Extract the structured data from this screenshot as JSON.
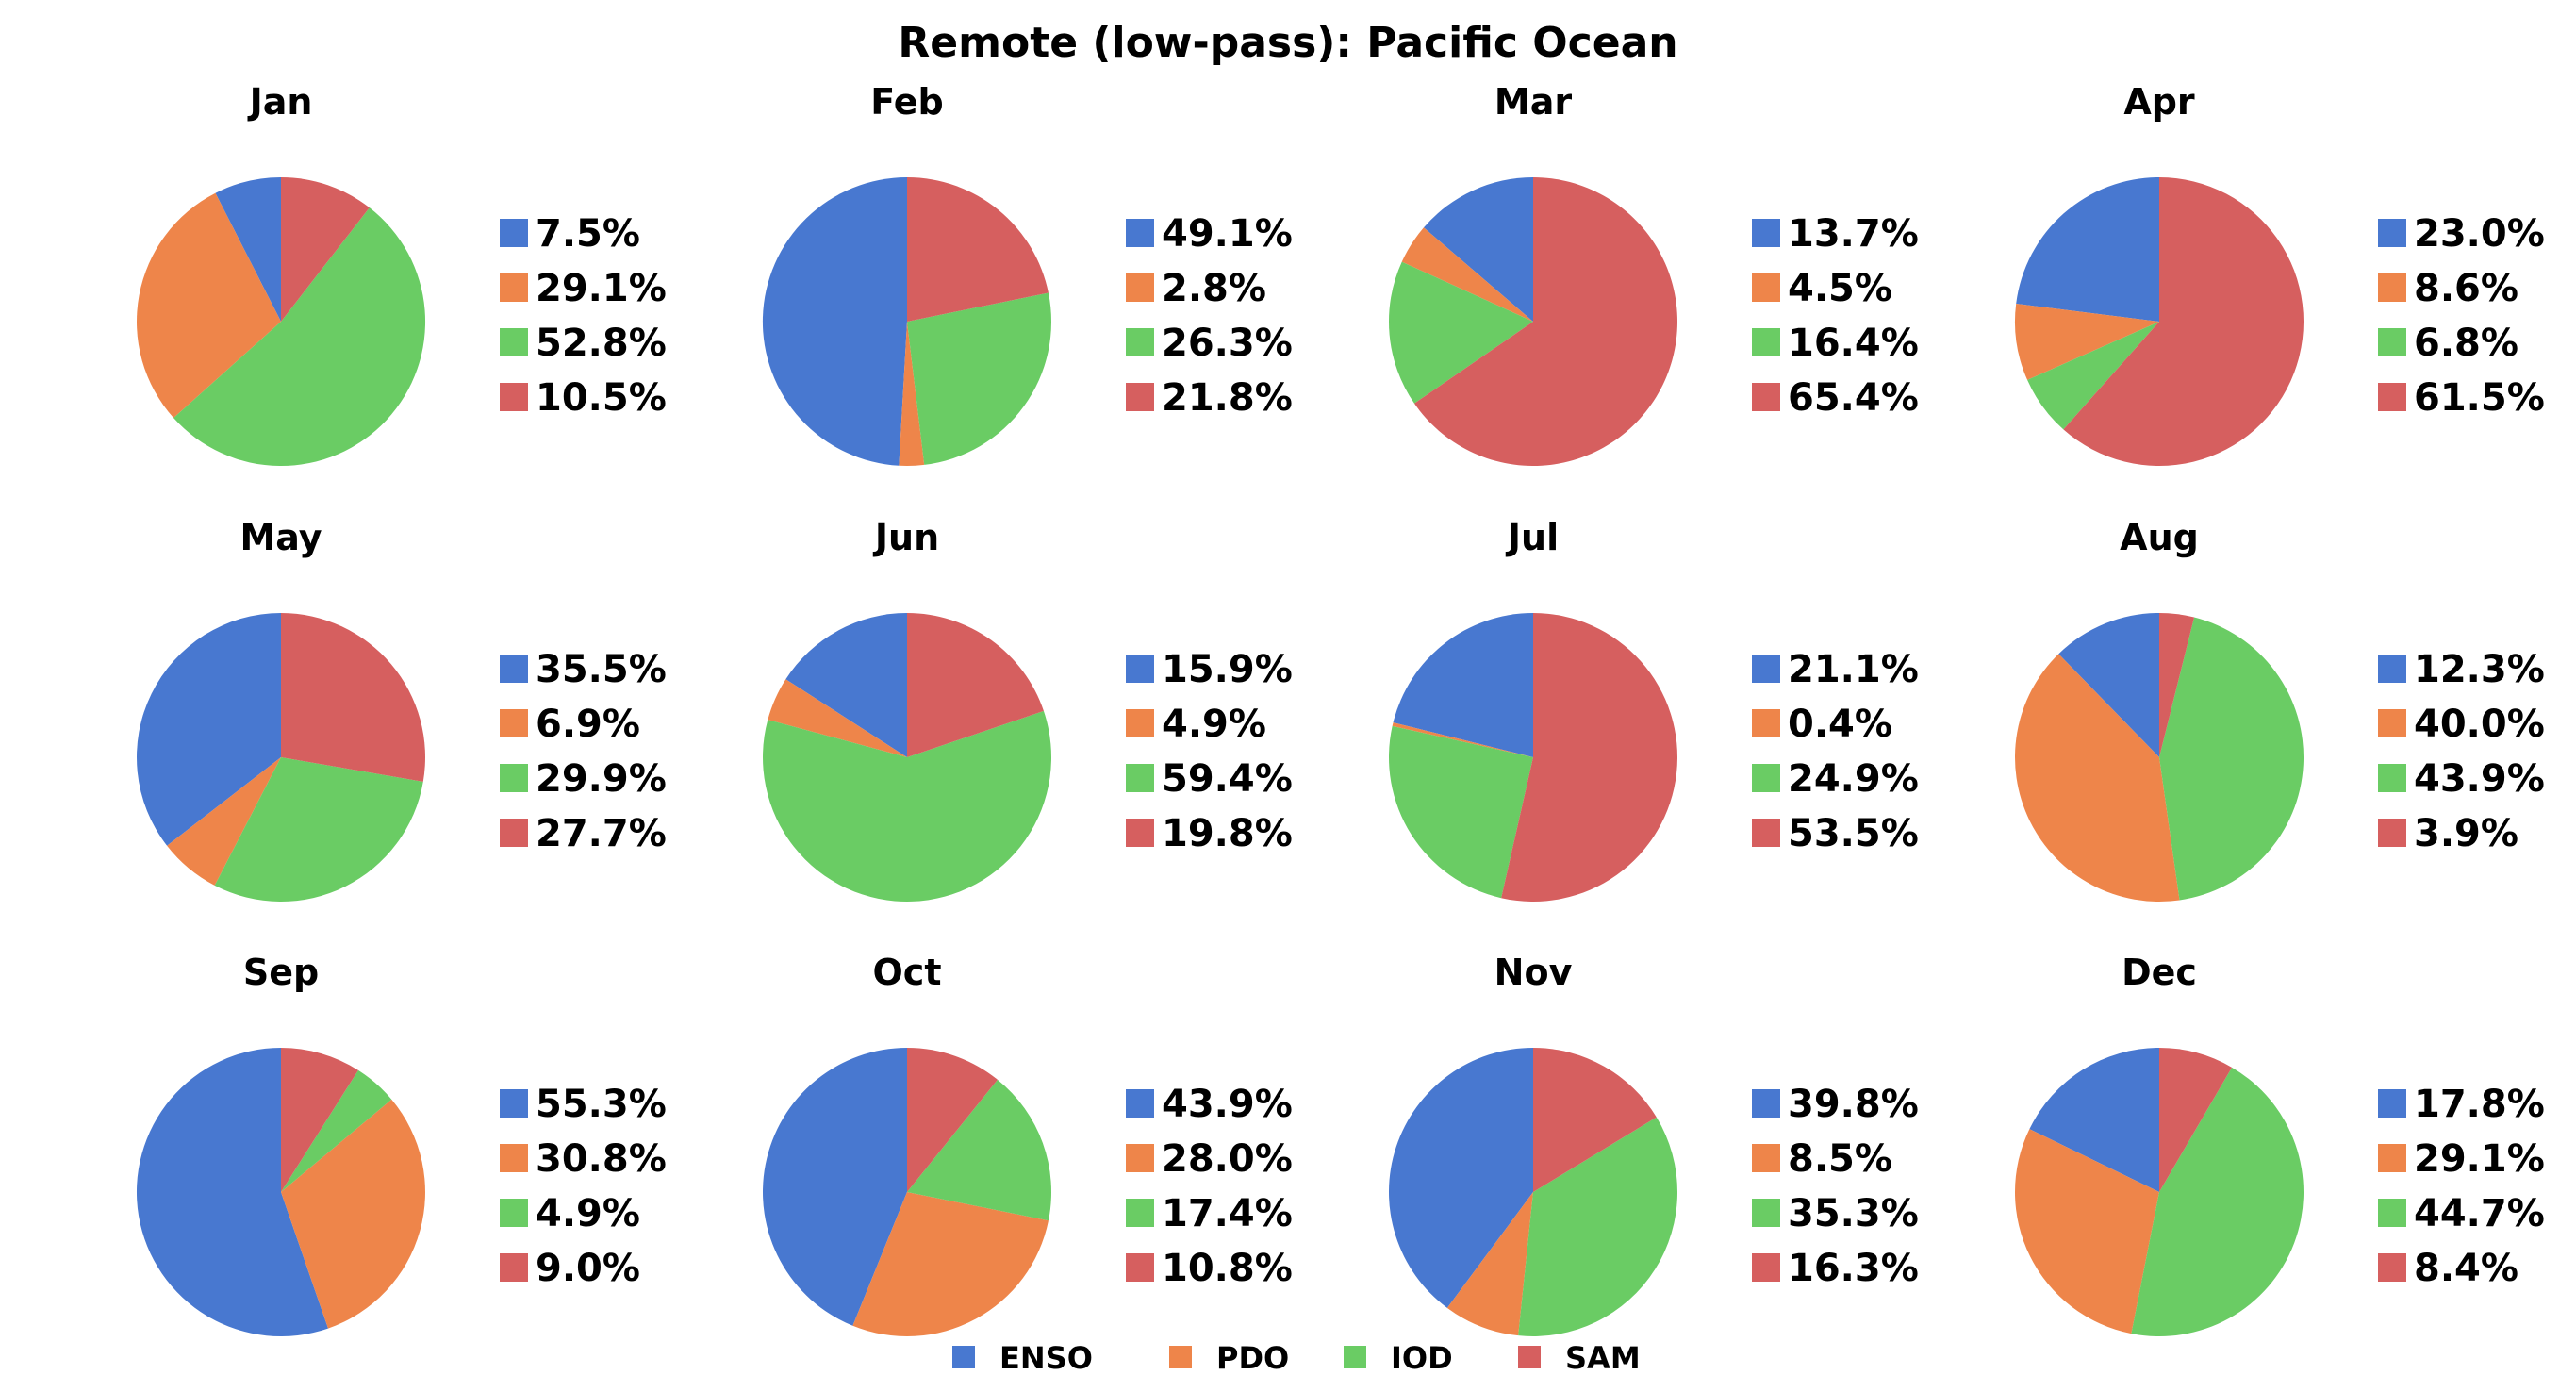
{
  "chart_data": {
    "type": "pie",
    "title": "Remote (low-pass): Pacific Ocean",
    "series_names": [
      "ENSO",
      "PDO",
      "IOD",
      "SAM"
    ],
    "colors": [
      "#4878d0",
      "#ee854a",
      "#6acc64",
      "#d65f5f"
    ],
    "legend_position": "bottom-center",
    "panels": [
      {
        "month": "Jan",
        "values": [
          7.5,
          29.1,
          52.8,
          10.5
        ],
        "labels": [
          "7.5%",
          "29.1%",
          "52.8%",
          "10.5%"
        ]
      },
      {
        "month": "Feb",
        "values": [
          49.1,
          2.8,
          26.3,
          21.8
        ],
        "labels": [
          "49.1%",
          "2.8%",
          "26.3%",
          "21.8%"
        ]
      },
      {
        "month": "Mar",
        "values": [
          13.7,
          4.5,
          16.4,
          65.4
        ],
        "labels": [
          "13.7%",
          "4.5%",
          "16.4%",
          "65.4%"
        ]
      },
      {
        "month": "Apr",
        "values": [
          23.0,
          8.6,
          6.8,
          61.5
        ],
        "labels": [
          "23.0%",
          "8.6%",
          "6.8%",
          "61.5%"
        ]
      },
      {
        "month": "May",
        "values": [
          35.5,
          6.9,
          29.9,
          27.7
        ],
        "labels": [
          "35.5%",
          "6.9%",
          "29.9%",
          "27.7%"
        ]
      },
      {
        "month": "Jun",
        "values": [
          15.9,
          4.9,
          59.4,
          19.8
        ],
        "labels": [
          "15.9%",
          "4.9%",
          "59.4%",
          "19.8%"
        ]
      },
      {
        "month": "Jul",
        "values": [
          21.1,
          0.4,
          24.9,
          53.5
        ],
        "labels": [
          "21.1%",
          "0.4%",
          "24.9%",
          "53.5%"
        ]
      },
      {
        "month": "Aug",
        "values": [
          12.3,
          40.0,
          43.9,
          3.9
        ],
        "labels": [
          "12.3%",
          "40.0%",
          "43.9%",
          "3.9%"
        ]
      },
      {
        "month": "Sep",
        "values": [
          55.3,
          30.8,
          4.9,
          9.0
        ],
        "labels": [
          "55.3%",
          "30.8%",
          "4.9%",
          "9.0%"
        ]
      },
      {
        "month": "Oct",
        "values": [
          43.9,
          28.0,
          17.4,
          10.8
        ],
        "labels": [
          "43.9%",
          "28.0%",
          "17.4%",
          "10.8%"
        ]
      },
      {
        "month": "Nov",
        "values": [
          39.8,
          8.5,
          35.3,
          16.3
        ],
        "labels": [
          "39.8%",
          "8.5%",
          "35.3%",
          "16.3%"
        ]
      },
      {
        "month": "Dec",
        "values": [
          17.8,
          29.1,
          44.7,
          8.4
        ],
        "labels": [
          "17.8%",
          "29.1%",
          "44.7%",
          "8.4%"
        ]
      }
    ]
  }
}
